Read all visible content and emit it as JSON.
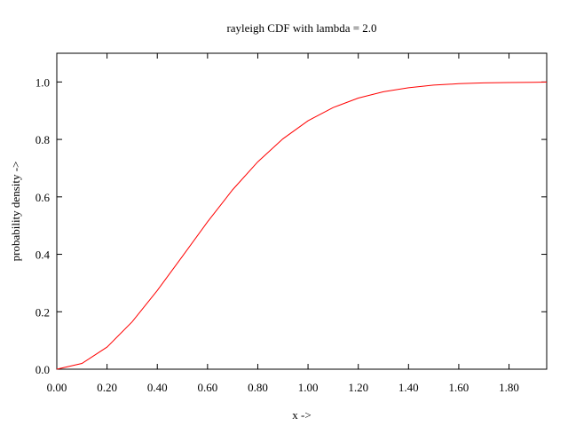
{
  "chart_data": {
    "type": "line",
    "title": "rayleigh CDF with lambda = 2.0",
    "xlabel": "x ->",
    "ylabel": "probability density ->",
    "xlim": [
      0.0,
      1.95
    ],
    "ylim": [
      0.0,
      1.1
    ],
    "x_ticks": [
      "0.00",
      "0.20",
      "0.40",
      "0.60",
      "0.80",
      "1.00",
      "1.20",
      "1.40",
      "1.60",
      "1.80"
    ],
    "y_ticks": [
      "0.0",
      "0.2",
      "0.4",
      "0.6",
      "0.8",
      "1.0"
    ],
    "grid": false,
    "line_color": "#ff0000",
    "series": [
      {
        "x": [
          0.0,
          0.1,
          0.2,
          0.3,
          0.4,
          0.5,
          0.6,
          0.7,
          0.8,
          0.9,
          1.0,
          1.1,
          1.2,
          1.3,
          1.4,
          1.5,
          1.6,
          1.7,
          1.8,
          1.9,
          1.95
        ],
        "values": [
          0.0,
          0.02,
          0.077,
          0.165,
          0.274,
          0.393,
          0.513,
          0.625,
          0.722,
          0.802,
          0.865,
          0.911,
          0.944,
          0.966,
          0.98,
          0.989,
          0.994,
          0.997,
          0.998,
          0.999,
          0.9995
        ]
      }
    ]
  }
}
